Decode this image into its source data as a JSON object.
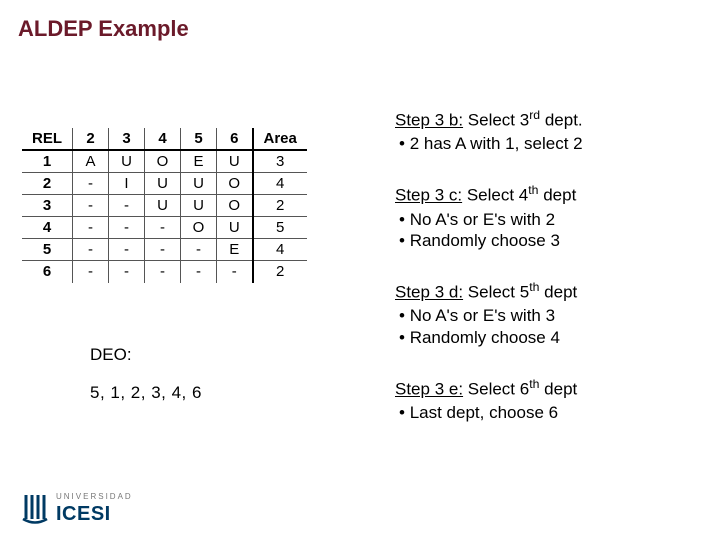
{
  "title": "ALDEP Example",
  "table": {
    "columns": [
      "REL",
      "2",
      "3",
      "4",
      "5",
      "6",
      "Area"
    ],
    "rows": [
      [
        "1",
        "A",
        "U",
        "O",
        "E",
        "U",
        "3"
      ],
      [
        "2",
        "-",
        "I",
        "U",
        "U",
        "O",
        "4"
      ],
      [
        "3",
        "-",
        "-",
        "U",
        "U",
        "O",
        "2"
      ],
      [
        "4",
        "-",
        "-",
        "-",
        "O",
        "U",
        "5"
      ],
      [
        "5",
        "-",
        "-",
        "-",
        "-",
        "E",
        "4"
      ],
      [
        "6",
        "-",
        "-",
        "-",
        "-",
        "-",
        "2"
      ]
    ]
  },
  "deo": {
    "label": "DEO:",
    "sequence": "5, 1, 2, 3, 4, 6"
  },
  "steps": [
    {
      "tag": "Step 3 b:",
      "rest_a": " Select 3",
      "ord": "rd",
      "rest_b": " dept.",
      "bullets": [
        "2 has A with 1, select 2"
      ]
    },
    {
      "tag": "Step 3 c:",
      "rest_a": " Select 4",
      "ord": "th",
      "rest_b": " dept",
      "bullets": [
        "No A's or E's with 2",
        "Randomly choose 3"
      ]
    },
    {
      "tag": "Step 3 d:",
      "rest_a": " Select 5",
      "ord": "th",
      "rest_b": " dept",
      "bullets": [
        "No A's or E's with 3",
        "Randomly choose 4"
      ]
    },
    {
      "tag": "Step 3 e:",
      "rest_a": " Select 6",
      "ord": "th",
      "rest_b": " dept",
      "bullets": [
        "Last dept, choose 6"
      ]
    }
  ],
  "logo": {
    "uni": "UNIVERSIDAD",
    "name": "ICESI",
    "color": "#003a63"
  }
}
